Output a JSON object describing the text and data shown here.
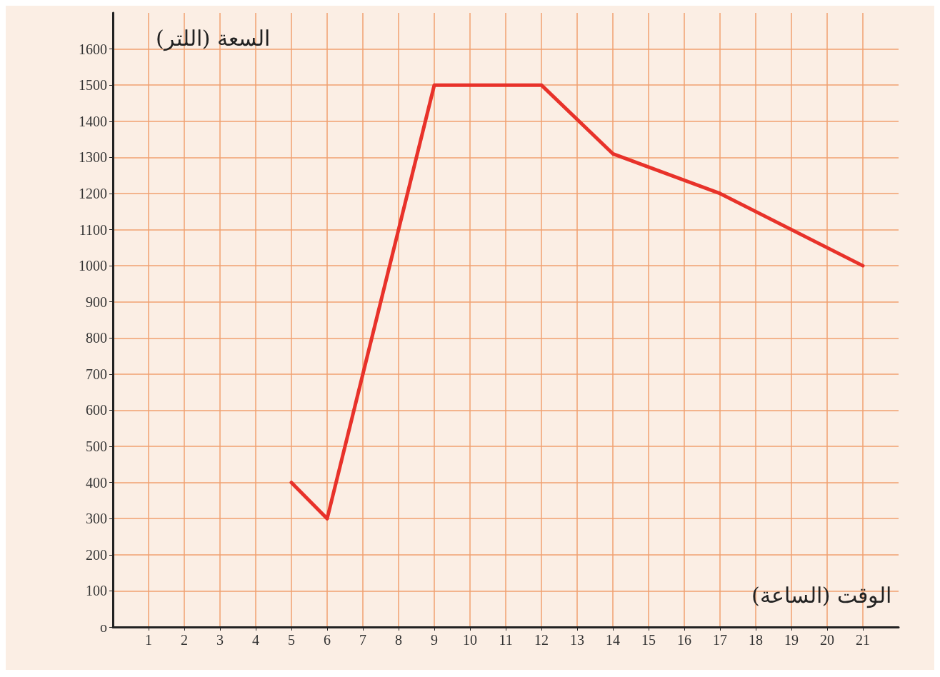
{
  "chart_data": {
    "type": "line",
    "xlabel": "الوقت (الساعة)",
    "ylabel": "السعة (اللتر)",
    "x": [
      5,
      6,
      9,
      12,
      14,
      17,
      21
    ],
    "series": [
      {
        "color": "#e8322a",
        "values": [
          400,
          300,
          1500,
          1500,
          1310,
          1200,
          1000
        ]
      }
    ],
    "xlim": [
      0,
      22
    ],
    "xticks": [
      1,
      2,
      3,
      4,
      5,
      6,
      7,
      8,
      9,
      10,
      11,
      12,
      13,
      14,
      15,
      16,
      17,
      18,
      19,
      20,
      21
    ],
    "ylim": [
      0,
      1700
    ],
    "yticks": [
      {
        "value": 0,
        "label": "o"
      },
      100,
      200,
      300,
      400,
      500,
      600,
      700,
      800,
      900,
      1000,
      1100,
      1200,
      1300,
      1400,
      1500,
      1600
    ],
    "grid": true,
    "marker": "none",
    "line_style": "solid"
  }
}
